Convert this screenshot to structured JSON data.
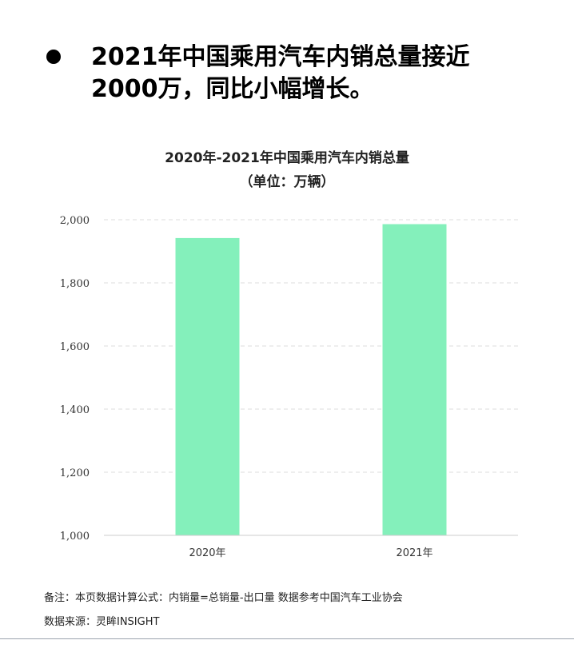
{
  "headline": {
    "bullet_icon": "filled-circle-bullet",
    "line1": "2021年中国乘用汽车内销总量接近",
    "line2": "2000万，同比小幅增长。"
  },
  "chart_data": {
    "type": "bar",
    "title": "2020年-2021年中国乘用汽车内销总量",
    "subtitle": "（单位：万辆）",
    "categories": [
      "2020年",
      "2021年"
    ],
    "values": [
      1942,
      1986
    ],
    "ylim": [
      1000,
      2000
    ],
    "yticks": [
      1000,
      1200,
      1400,
      1600,
      1800,
      2000
    ],
    "ytick_labels": [
      "1,000",
      "1,200",
      "1,400",
      "1,600",
      "1,800",
      "2,000"
    ],
    "grid": true,
    "legend": "none",
    "bar_color": "#84f0bb",
    "grid_color": "#dddddd"
  },
  "footer": {
    "note": "备注：本页数据计算公式：内销量=总销量-出口量 数据参考中国汽车工业协会",
    "source": "数据来源：灵眸INSIGHT"
  }
}
